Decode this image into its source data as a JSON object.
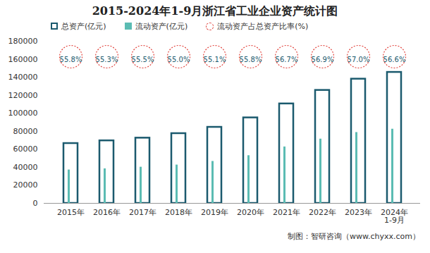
{
  "chart_data": {
    "type": "bar",
    "title": "2015-2024年1-9月浙江省工业企业资产统计图",
    "categories": [
      "2015年",
      "2016年",
      "2017年",
      "2018年",
      "2019年",
      "2020年",
      "2021年",
      "2022年",
      "2023年",
      "2024年\n1-9月"
    ],
    "series": [
      {
        "name": "总资产(亿元)",
        "type": "bar_outline",
        "color": "#1b5a6e",
        "values": [
          66500,
          69500,
          72500,
          77500,
          84500,
          95000,
          110500,
          125500,
          138000,
          145500
        ]
      },
      {
        "name": "流动资产(亿元)",
        "type": "bar",
        "color": "#5bbcb3",
        "values": [
          37100,
          38400,
          40200,
          42600,
          46600,
          53000,
          62700,
          71400,
          78700,
          82400
        ]
      },
      {
        "name": "流动资产占总资产比率(%)",
        "type": "label",
        "color": "#e0403a",
        "values": [
          55.8,
          55.3,
          55.5,
          55.0,
          55.1,
          55.8,
          56.7,
          56.9,
          57.0,
          56.6
        ],
        "value_labels": [
          "55.8%",
          "55.3%",
          "55.5%",
          "55.0%",
          "55.1%",
          "55.8%",
          "56.7%",
          "56.9%",
          "57.0%",
          "56.6%"
        ]
      }
    ],
    "ylim": [
      0,
      180000
    ],
    "yticks": [
      0,
      20000,
      40000,
      60000,
      80000,
      100000,
      120000,
      140000,
      160000,
      180000
    ],
    "grid": false,
    "legend": "top",
    "caption": "制图：智研咨询（www.chyxx.com）"
  }
}
